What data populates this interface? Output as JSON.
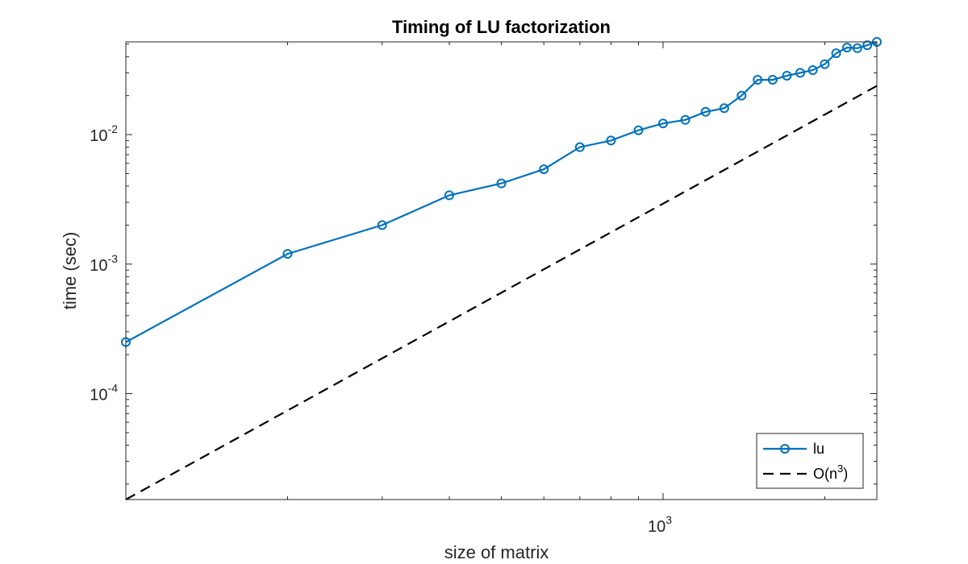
{
  "chart_data": {
    "type": "line",
    "title": "Timing of LU factorization",
    "xlabel": "size of matrix",
    "ylabel": "time (sec)",
    "x_scale": "log",
    "y_scale": "log",
    "xlim": [
      100,
      2500
    ],
    "ylim": [
      1.52e-05,
      0.052
    ],
    "grid": false,
    "legend_position": "bottom-right",
    "x_ticks": [
      {
        "base": "10",
        "exp": "3",
        "value": 1000
      }
    ],
    "y_ticks": [
      {
        "base": "10",
        "exp": "-4",
        "value": 0.0001
      },
      {
        "base": "10",
        "exp": "-3",
        "value": 0.001
      },
      {
        "base": "10",
        "exp": "-2",
        "value": 0.01
      }
    ],
    "series": [
      {
        "name": "lu",
        "color": "#0072BD",
        "style": "solid",
        "marker": "circle",
        "x": [
          100,
          200,
          300,
          400,
          500,
          600,
          700,
          800,
          900,
          1000,
          1100,
          1200,
          1300,
          1400,
          1500,
          1600,
          1700,
          1800,
          1900,
          2000,
          2100,
          2200,
          2300,
          2400,
          2500
        ],
        "y": [
          0.00025,
          0.0012,
          0.002,
          0.0034,
          0.0042,
          0.0054,
          0.008,
          0.009,
          0.0108,
          0.0122,
          0.013,
          0.015,
          0.016,
          0.02,
          0.0265,
          0.0265,
          0.0285,
          0.03,
          0.0315,
          0.035,
          0.0425,
          0.047,
          0.0465,
          0.049,
          0.052
        ]
      },
      {
        "name": "O(n",
        "name_sup": "3",
        "name_suffix": ")",
        "color": "#000000",
        "style": "dashed",
        "marker": "none",
        "x": [
          100,
          2500
        ],
        "y": [
          1.52e-05,
          0.0238
        ]
      }
    ]
  }
}
